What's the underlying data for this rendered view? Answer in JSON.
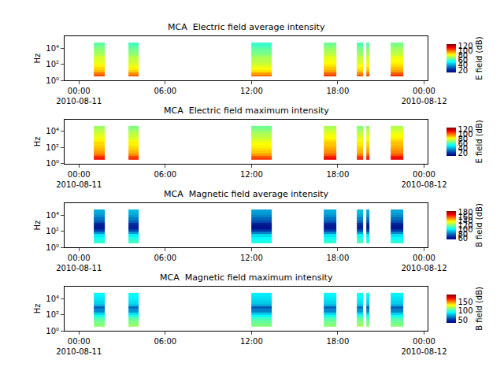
{
  "chart_data": [
    {
      "type": "heatmap",
      "title": "MCA  Electric field average intensity",
      "ylabel": "Hz",
      "log": "y",
      "grid": false,
      "xlim": [
        "2010-08-10 23:00",
        "2010-08-12 00:15"
      ],
      "xticks": [
        {
          "value": "2010-08-11 00:00",
          "label": "00:00\n2010-08-11"
        },
        {
          "value": "2010-08-11 06:00",
          "label": "06:00"
        },
        {
          "value": "2010-08-11 12:00",
          "label": "12:00"
        },
        {
          "value": "2010-08-11 18:00",
          "label": "18:00"
        },
        {
          "value": "2010-08-12 00:00",
          "label": "00:00\n2010-08-12"
        }
      ],
      "ylim": [
        1,
        300000
      ],
      "yticks": [
        {
          "value": 1,
          "label": "10⁰"
        },
        {
          "value": 100,
          "label": "10²"
        },
        {
          "value": 10000,
          "label": "10⁴"
        }
      ],
      "x_edges": [
        "2010-08-11 01:02",
        "2010-08-11 01:48",
        "2010-08-11 03:26",
        "2010-08-11 04:09",
        "2010-08-11 12:00",
        "2010-08-11 13:25",
        "2010-08-11 17:03",
        "2010-08-11 17:55",
        "2010-08-11 19:21",
        "2010-08-11 19:47",
        "2010-08-11 20:00",
        "2010-08-11 20:13",
        "2010-08-11 21:42",
        "2010-08-11 22:34"
      ],
      "y_edges": [
        3,
        5,
        10,
        20,
        50,
        100,
        200,
        500,
        1000,
        2000,
        5000,
        10000,
        20000,
        50000
      ],
      "z": [
        [
          105,
          null,
          102,
          null,
          100,
          null,
          107,
          null,
          103,
          null,
          105,
          null,
          108
        ],
        [
          100,
          null,
          97,
          null,
          95,
          null,
          102,
          null,
          98,
          null,
          100,
          null,
          103
        ],
        [
          92,
          null,
          89,
          null,
          87,
          null,
          94,
          null,
          90,
          null,
          92,
          null,
          95
        ],
        [
          88,
          null,
          85,
          null,
          83,
          null,
          90,
          null,
          86,
          null,
          88,
          null,
          91
        ],
        [
          85,
          null,
          82,
          null,
          80,
          null,
          87,
          null,
          83,
          null,
          85,
          null,
          88
        ],
        [
          82,
          null,
          79,
          null,
          77,
          null,
          84,
          null,
          80,
          null,
          82,
          null,
          85
        ],
        [
          80,
          null,
          77,
          null,
          75,
          null,
          82,
          null,
          78,
          null,
          80,
          null,
          83
        ],
        [
          78,
          null,
          75,
          null,
          73,
          null,
          80,
          null,
          76,
          null,
          78,
          null,
          81
        ],
        [
          75,
          null,
          72,
          null,
          70,
          null,
          77,
          null,
          73,
          null,
          75,
          null,
          78
        ],
        [
          72,
          null,
          69,
          null,
          67,
          null,
          74,
          null,
          70,
          null,
          72,
          null,
          75
        ],
        [
          70,
          null,
          67,
          null,
          65,
          null,
          72,
          null,
          68,
          null,
          70,
          null,
          73
        ],
        [
          68,
          null,
          65,
          null,
          63,
          null,
          70,
          null,
          66,
          null,
          68,
          null,
          71
        ],
        [
          65,
          null,
          62,
          null,
          60,
          null,
          67,
          null,
          63,
          null,
          65,
          null,
          68
        ]
      ],
      "colorbar_label": "E field (dB)",
      "zlim": [
        10,
        128
      ],
      "zticks": [
        20,
        40,
        60,
        80,
        100,
        120
      ]
    },
    {
      "type": "heatmap",
      "title": "MCA  Electric field maximum intensity",
      "ylabel": "Hz",
      "log": "y",
      "grid": false,
      "xlim": [
        "2010-08-10 23:00",
        "2010-08-12 00:15"
      ],
      "xticks": [
        {
          "value": "2010-08-11 00:00",
          "label": "00:00\n2010-08-11"
        },
        {
          "value": "2010-08-11 06:00",
          "label": "06:00"
        },
        {
          "value": "2010-08-11 12:00",
          "label": "12:00"
        },
        {
          "value": "2010-08-11 18:00",
          "label": "18:00"
        },
        {
          "value": "2010-08-12 00:00",
          "label": "00:00\n2010-08-12"
        }
      ],
      "ylim": [
        1,
        300000
      ],
      "yticks": [
        {
          "value": 1,
          "label": "10⁰"
        },
        {
          "value": 100,
          "label": "10²"
        },
        {
          "value": 10000,
          "label": "10⁴"
        }
      ],
      "x_edges": [
        "2010-08-11 01:02",
        "2010-08-11 01:48",
        "2010-08-11 03:26",
        "2010-08-11 04:09",
        "2010-08-11 12:00",
        "2010-08-11 13:25",
        "2010-08-11 17:03",
        "2010-08-11 17:55",
        "2010-08-11 19:21",
        "2010-08-11 19:47",
        "2010-08-11 20:00",
        "2010-08-11 20:13",
        "2010-08-11 21:42",
        "2010-08-11 22:34"
      ],
      "y_edges": [
        3,
        5,
        10,
        20,
        50,
        100,
        200,
        500,
        1000,
        2000,
        5000,
        10000,
        20000,
        50000
      ],
      "z": [
        [
          112,
          null,
          109,
          null,
          107,
          null,
          114,
          null,
          110,
          null,
          112,
          null,
          115
        ],
        [
          108,
          null,
          105,
          null,
          103,
          null,
          110,
          null,
          106,
          null,
          108,
          null,
          111
        ],
        [
          100,
          null,
          97,
          null,
          95,
          null,
          102,
          null,
          98,
          null,
          100,
          null,
          103
        ],
        [
          95,
          null,
          92,
          null,
          90,
          null,
          97,
          null,
          93,
          null,
          95,
          null,
          98
        ],
        [
          92,
          null,
          89,
          null,
          87,
          null,
          94,
          null,
          90,
          null,
          92,
          null,
          95
        ],
        [
          90,
          null,
          87,
          null,
          85,
          null,
          92,
          null,
          88,
          null,
          90,
          null,
          93
        ],
        [
          88,
          null,
          85,
          null,
          83,
          null,
          90,
          null,
          86,
          null,
          88,
          null,
          91
        ],
        [
          85,
          null,
          82,
          null,
          80,
          null,
          87,
          null,
          83,
          null,
          85,
          null,
          88
        ],
        [
          82,
          null,
          79,
          null,
          77,
          null,
          84,
          null,
          80,
          null,
          82,
          null,
          85
        ],
        [
          80,
          null,
          77,
          null,
          75,
          null,
          82,
          null,
          78,
          null,
          80,
          null,
          83
        ],
        [
          78,
          null,
          75,
          null,
          73,
          null,
          80,
          null,
          76,
          null,
          78,
          null,
          81
        ],
        [
          75,
          null,
          72,
          null,
          70,
          null,
          77,
          null,
          73,
          null,
          75,
          null,
          78
        ],
        [
          72,
          null,
          69,
          null,
          67,
          null,
          74,
          null,
          70,
          null,
          72,
          null,
          75
        ]
      ],
      "colorbar_label": "E field (dB)",
      "zlim": [
        10,
        128
      ],
      "zticks": [
        20,
        40,
        60,
        80,
        100,
        120
      ]
    },
    {
      "type": "heatmap",
      "title": "MCA  Magnetic field average intensity",
      "ylabel": "Hz",
      "log": "y",
      "grid": false,
      "xlim": [
        "2010-08-10 23:00",
        "2010-08-12 00:15"
      ],
      "xticks": [
        {
          "value": "2010-08-11 00:00",
          "label": "00:00\n2010-08-11"
        },
        {
          "value": "2010-08-11 06:00",
          "label": "06:00"
        },
        {
          "value": "2010-08-11 12:00",
          "label": "12:00"
        },
        {
          "value": "2010-08-11 18:00",
          "label": "18:00"
        },
        {
          "value": "2010-08-12 00:00",
          "label": "00:00\n2010-08-12"
        }
      ],
      "ylim": [
        1,
        300000
      ],
      "yticks": [
        {
          "value": 1,
          "label": "10⁰"
        },
        {
          "value": 100,
          "label": "10²"
        },
        {
          "value": 10000,
          "label": "10⁴"
        }
      ],
      "x_edges": [
        "2010-08-11 01:02",
        "2010-08-11 01:48",
        "2010-08-11 03:26",
        "2010-08-11 04:09",
        "2010-08-11 12:00",
        "2010-08-11 13:25",
        "2010-08-11 17:03",
        "2010-08-11 17:55",
        "2010-08-11 19:21",
        "2010-08-11 19:47",
        "2010-08-11 20:00",
        "2010-08-11 20:13",
        "2010-08-11 21:42",
        "2010-08-11 22:34"
      ],
      "y_edges": [
        3,
        5,
        10,
        20,
        50,
        100,
        200,
        500,
        1000,
        2000,
        5000,
        10000,
        20000,
        50000
      ],
      "z": [
        [
          110,
          null,
          112,
          null,
          108,
          null,
          110,
          null,
          113,
          null,
          110,
          null,
          109
        ],
        [
          108,
          null,
          110,
          null,
          106,
          null,
          108,
          null,
          111,
          null,
          108,
          null,
          107
        ],
        [
          105,
          null,
          107,
          null,
          103,
          null,
          105,
          null,
          108,
          null,
          105,
          null,
          104
        ],
        [
          100,
          null,
          102,
          null,
          98,
          null,
          100,
          null,
          103,
          null,
          100,
          null,
          99
        ],
        [
          85,
          null,
          87,
          null,
          83,
          null,
          85,
          null,
          88,
          null,
          85,
          null,
          84
        ],
        [
          70,
          null,
          72,
          null,
          68,
          null,
          70,
          null,
          73,
          null,
          70,
          null,
          69
        ],
        [
          62,
          null,
          64,
          null,
          60,
          null,
          62,
          null,
          65,
          null,
          62,
          null,
          61
        ],
        [
          65,
          null,
          67,
          null,
          63,
          null,
          65,
          null,
          68,
          null,
          65,
          null,
          64
        ],
        [
          75,
          null,
          77,
          null,
          73,
          null,
          75,
          null,
          78,
          null,
          75,
          null,
          74
        ],
        [
          80,
          null,
          82,
          null,
          78,
          null,
          80,
          null,
          83,
          null,
          80,
          null,
          79
        ],
        [
          85,
          null,
          87,
          null,
          83,
          null,
          85,
          null,
          88,
          null,
          85,
          null,
          84
        ],
        [
          88,
          null,
          90,
          null,
          86,
          null,
          88,
          null,
          91,
          null,
          88,
          null,
          87
        ],
        [
          90,
          null,
          92,
          null,
          88,
          null,
          90,
          null,
          93,
          null,
          90,
          null,
          89
        ]
      ],
      "colorbar_label": "B field (dB)",
      "zlim": [
        55,
        185
      ],
      "zticks": [
        60,
        80,
        100,
        120,
        140,
        160,
        180
      ]
    },
    {
      "type": "heatmap",
      "title": "MCA  Magnetic field maximum intensity",
      "ylabel": "Hz",
      "log": "y",
      "grid": false,
      "xlim": [
        "2010-08-10 23:00",
        "2010-08-12 00:15"
      ],
      "xticks": [
        {
          "value": "2010-08-11 00:00",
          "label": "00:00\n2010-08-11"
        },
        {
          "value": "2010-08-11 06:00",
          "label": "06:00"
        },
        {
          "value": "2010-08-11 12:00",
          "label": "12:00"
        },
        {
          "value": "2010-08-11 18:00",
          "label": "18:00"
        },
        {
          "value": "2010-08-12 00:00",
          "label": "00:00\n2010-08-12"
        }
      ],
      "ylim": [
        1,
        300000
      ],
      "yticks": [
        {
          "value": 1,
          "label": "10⁰"
        },
        {
          "value": 100,
          "label": "10²"
        },
        {
          "value": 10000,
          "label": "10⁴"
        }
      ],
      "x_edges": [
        "2010-08-11 01:02",
        "2010-08-11 01:48",
        "2010-08-11 03:26",
        "2010-08-11 04:09",
        "2010-08-11 12:00",
        "2010-08-11 13:25",
        "2010-08-11 17:03",
        "2010-08-11 17:55",
        "2010-08-11 19:21",
        "2010-08-11 19:47",
        "2010-08-11 20:00",
        "2010-08-11 20:13",
        "2010-08-11 21:42",
        "2010-08-11 22:34"
      ],
      "y_edges": [
        3,
        5,
        10,
        20,
        50,
        100,
        200,
        500,
        1000,
        2000,
        5000,
        10000,
        20000,
        50000
      ],
      "z": [
        [
          115,
          null,
          117,
          null,
          113,
          null,
          115,
          null,
          118,
          null,
          115,
          null,
          114
        ],
        [
          112,
          null,
          114,
          null,
          110,
          null,
          112,
          null,
          115,
          null,
          112,
          null,
          111
        ],
        [
          110,
          null,
          112,
          null,
          108,
          null,
          110,
          null,
          113,
          null,
          110,
          null,
          109
        ],
        [
          105,
          null,
          107,
          null,
          103,
          null,
          105,
          null,
          108,
          null,
          105,
          null,
          104
        ],
        [
          95,
          null,
          97,
          null,
          93,
          null,
          95,
          null,
          98,
          null,
          95,
          null,
          94
        ],
        [
          85,
          null,
          87,
          null,
          83,
          null,
          85,
          null,
          88,
          null,
          85,
          null,
          84
        ],
        [
          70,
          null,
          72,
          null,
          68,
          null,
          70,
          null,
          73,
          null,
          70,
          null,
          69
        ],
        [
          62,
          null,
          64,
          null,
          60,
          null,
          62,
          null,
          65,
          null,
          62,
          null,
          61
        ],
        [
          80,
          null,
          82,
          null,
          78,
          null,
          80,
          null,
          83,
          null,
          80,
          null,
          79
        ],
        [
          85,
          null,
          87,
          null,
          83,
          null,
          85,
          null,
          88,
          null,
          85,
          null,
          84
        ],
        [
          88,
          null,
          90,
          null,
          86,
          null,
          88,
          null,
          91,
          null,
          88,
          null,
          87
        ],
        [
          90,
          null,
          92,
          null,
          88,
          null,
          90,
          null,
          93,
          null,
          90,
          null,
          89
        ],
        [
          92,
          null,
          94,
          null,
          90,
          null,
          92,
          null,
          95,
          null,
          92,
          null,
          91
        ]
      ],
      "colorbar_label": "B field (dB)",
      "zlim": [
        35,
        190
      ],
      "zticks": [
        50,
        100,
        150
      ]
    }
  ]
}
